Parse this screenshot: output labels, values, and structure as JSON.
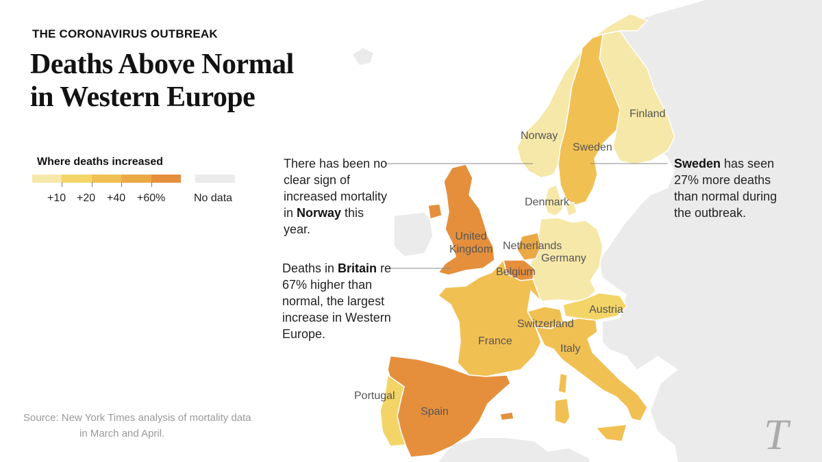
{
  "kicker": "THE CORONAVIRUS OUTBREAK",
  "headline_line1": "Deaths Above Normal",
  "headline_line2": "in Western Europe",
  "legend": {
    "title": "Where deaths increased",
    "colors": [
      "#f6e8a8",
      "#f3d567",
      "#f1c053",
      "#eba946",
      "#e58f3c"
    ],
    "ticks": [
      "+10",
      "+20",
      "+40",
      "+60%"
    ],
    "nodata_label": "No data",
    "nodata_color": "#ebebeb"
  },
  "annotations": {
    "norway": {
      "pre": "There has been no clear sign of increased mortality in ",
      "bold": "Norway",
      "post": " this year."
    },
    "sweden": {
      "bold": "Sweden",
      "post": " has seen 27% more deaths than normal during the outbreak."
    },
    "britain": {
      "pre": "Deaths in ",
      "bold": "Britain",
      "post": " re 67% higher than normal, the largest increase in Western Europe."
    }
  },
  "countries": {
    "finland": "Finland",
    "norway": "Norway",
    "sweden": "Sweden",
    "denmark": "Denmark",
    "uk_line1": "United",
    "uk_line2": "Kingdom",
    "netherlands": "Netherlands",
    "germany": "Germany",
    "belgium": "Belgium",
    "austria": "Austria",
    "switzerland": "Switzerland",
    "france": "France",
    "italy": "Italy",
    "portugal": "Portugal",
    "spain": "Spain"
  },
  "source_line1": "Source: New York Times analysis of mortality data",
  "source_line2": "in March and April.",
  "logo": "T",
  "colors": {
    "nodata": "#ebebeb",
    "border": "#ffffff",
    "leader": "#888888"
  }
}
